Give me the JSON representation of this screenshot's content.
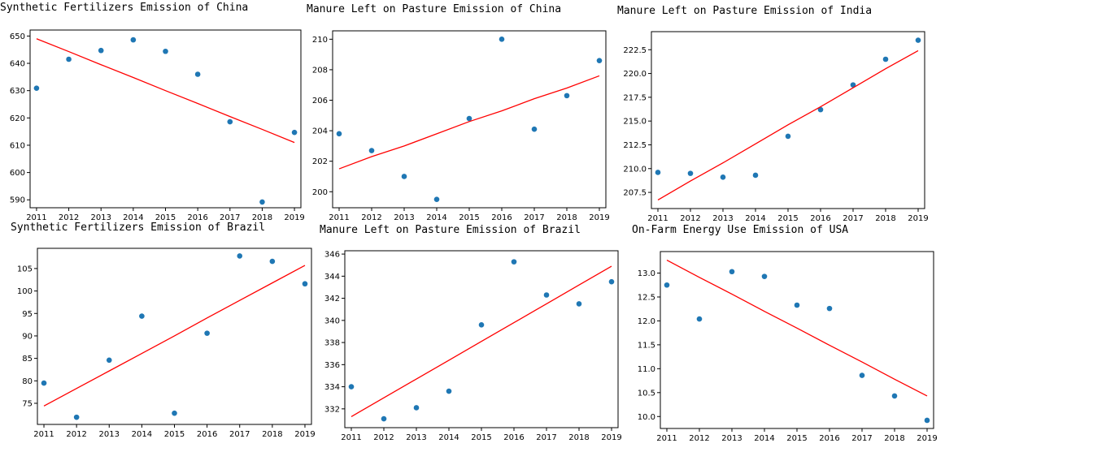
{
  "chart_data": [
    {
      "type": "scatter",
      "title": "Synthetic Fertilizers Emission of China",
      "xlabel": "",
      "ylabel": "",
      "x": [
        2011,
        2012,
        2013,
        2014,
        2015,
        2016,
        2017,
        2018,
        2019
      ],
      "xticks": [
        2011,
        2012,
        2013,
        2014,
        2015,
        2016,
        2017,
        2018,
        2019
      ],
      "yticks": [
        590,
        600,
        610,
        620,
        630,
        640,
        650
      ],
      "xlim": [
        2010.8,
        2019.2
      ],
      "ylim": [
        587.1,
        652.2
      ],
      "grid": false,
      "series": [
        {
          "kind": "points",
          "color": "#1f77b4",
          "values": [
            630.9,
            641.5,
            644.7,
            648.6,
            644.4,
            636.0,
            618.6,
            589.2,
            614.7
          ]
        },
        {
          "kind": "trend",
          "color": "#ff0000",
          "values": [
            649.0,
            644.3,
            639.5,
            634.8,
            630.0,
            625.3,
            620.5,
            615.8,
            611.0
          ]
        }
      ]
    },
    {
      "type": "scatter",
      "title": "Manure Left on Pasture Emission of China",
      "xlabel": "",
      "ylabel": "",
      "x": [
        2011,
        2012,
        2013,
        2014,
        2015,
        2016,
        2017,
        2018,
        2019
      ],
      "xticks": [
        2011,
        2012,
        2013,
        2014,
        2015,
        2016,
        2017,
        2018,
        2019
      ],
      "yticks": [
        200,
        202,
        204,
        206,
        208,
        210
      ],
      "xlim": [
        2010.8,
        2019.2
      ],
      "ylim": [
        198.95,
        210.55
      ],
      "grid": false,
      "series": [
        {
          "kind": "points",
          "color": "#1f77b4",
          "values": [
            203.8,
            202.7,
            201.0,
            199.5,
            204.8,
            210.0,
            204.1,
            206.3,
            208.6
          ]
        },
        {
          "kind": "trend",
          "color": "#ff0000",
          "values": [
            201.5,
            202.3,
            203.0,
            203.8,
            204.6,
            205.3,
            206.1,
            206.8,
            207.6
          ]
        }
      ]
    },
    {
      "type": "scatter",
      "title": "Manure Left on Pasture Emission of India",
      "xlabel": "",
      "ylabel": "",
      "x": [
        2011,
        2012,
        2013,
        2014,
        2015,
        2016,
        2017,
        2018,
        2019
      ],
      "xticks": [
        2011,
        2012,
        2013,
        2014,
        2015,
        2016,
        2017,
        2018,
        2019
      ],
      "yticks": [
        "207.5",
        "210.0",
        "212.5",
        "215.0",
        "217.5",
        "220.0",
        "222.5"
      ],
      "xlim": [
        2010.8,
        2019.2
      ],
      "ylim": [
        205.8,
        224.4
      ],
      "grid": false,
      "series": [
        {
          "kind": "points",
          "color": "#1f77b4",
          "values": [
            209.6,
            209.5,
            209.1,
            209.3,
            213.4,
            216.2,
            218.8,
            221.5,
            223.5
          ]
        },
        {
          "kind": "trend",
          "color": "#ff0000",
          "values": [
            206.7,
            208.7,
            210.6,
            212.6,
            214.6,
            216.5,
            218.5,
            220.5,
            222.4
          ]
        }
      ]
    },
    {
      "type": "scatter",
      "title": "Synthetic Fertilizers Emission of Brazil",
      "xlabel": "",
      "ylabel": "",
      "x": [
        2011,
        2012,
        2013,
        2014,
        2015,
        2016,
        2017,
        2018,
        2019
      ],
      "xticks": [
        2011,
        2012,
        2013,
        2014,
        2015,
        2016,
        2017,
        2018,
        2019
      ],
      "yticks": [
        75,
        80,
        85,
        90,
        95,
        100,
        105
      ],
      "xlim": [
        2010.8,
        2019.2
      ],
      "ylim": [
        70.3,
        109.5
      ],
      "grid": false,
      "series": [
        {
          "kind": "points",
          "color": "#1f77b4",
          "values": [
            79.5,
            71.9,
            84.6,
            94.4,
            72.8,
            90.6,
            107.8,
            106.6,
            101.6
          ]
        },
        {
          "kind": "trend",
          "color": "#ff0000",
          "values": [
            74.4,
            78.3,
            82.2,
            86.1,
            90.0,
            94.0,
            97.9,
            101.8,
            105.7
          ]
        }
      ]
    },
    {
      "type": "scatter",
      "title": "Manure Left on Pasture Emission of Brazil",
      "xlabel": "",
      "ylabel": "",
      "x": [
        2011,
        2012,
        2013,
        2014,
        2015,
        2016,
        2017,
        2018,
        2019
      ],
      "xticks": [
        2011,
        2012,
        2013,
        2014,
        2015,
        2016,
        2017,
        2018,
        2019
      ],
      "yticks": [
        332,
        334,
        336,
        338,
        340,
        342,
        344,
        346
      ],
      "xlim": [
        2010.8,
        2019.2
      ],
      "ylim": [
        330.3,
        346.3
      ],
      "grid": false,
      "series": [
        {
          "kind": "points",
          "color": "#1f77b4",
          "values": [
            334.0,
            331.1,
            332.1,
            333.6,
            339.6,
            345.3,
            342.3,
            341.5,
            343.5
          ]
        },
        {
          "kind": "trend",
          "color": "#ff0000",
          "values": [
            331.3,
            333.0,
            334.7,
            336.4,
            338.1,
            339.8,
            341.5,
            343.2,
            344.9
          ]
        }
      ]
    },
    {
      "type": "scatter",
      "title": "On-Farm Energy Use Emission of USA",
      "xlabel": "",
      "ylabel": "",
      "x": [
        2011,
        2012,
        2013,
        2014,
        2015,
        2016,
        2017,
        2018,
        2019
      ],
      "xticks": [
        2011,
        2012,
        2013,
        2014,
        2015,
        2016,
        2017,
        2018,
        2019
      ],
      "yticks": [
        "10.0",
        "10.5",
        "11.0",
        "11.5",
        "12.0",
        "12.5",
        "13.0"
      ],
      "xlim": [
        2010.8,
        2019.2
      ],
      "ylim": [
        9.75,
        13.45
      ],
      "grid": false,
      "series": [
        {
          "kind": "points",
          "color": "#1f77b4",
          "values": [
            12.75,
            12.04,
            13.03,
            12.93,
            12.33,
            12.26,
            10.86,
            10.43,
            9.92
          ]
        },
        {
          "kind": "trend",
          "color": "#ff0000",
          "values": [
            13.27,
            12.91,
            12.56,
            12.2,
            11.85,
            11.49,
            11.14,
            10.78,
            10.43
          ]
        }
      ]
    }
  ]
}
